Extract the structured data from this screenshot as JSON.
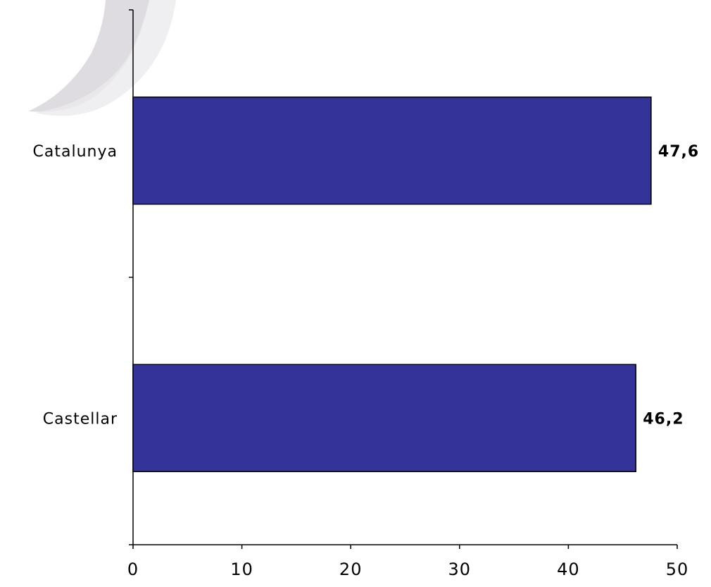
{
  "chart_data": {
    "type": "bar",
    "orientation": "horizontal",
    "categories": [
      "Catalunya",
      "Castellar"
    ],
    "values": [
      47.6,
      46.2
    ],
    "value_labels": [
      "47,6",
      "46,2"
    ],
    "xlim": [
      0,
      50
    ],
    "x_ticks": [
      0,
      10,
      20,
      30,
      40,
      50
    ],
    "x_tick_labels": [
      "0",
      "10",
      "20",
      "30",
      "40",
      "50"
    ],
    "grid": false,
    "legend": "none",
    "colors": {
      "bar_fill": "#333399",
      "bar_stroke": "#000000",
      "axis": "#000000",
      "decoration": "#d4d2d6"
    }
  }
}
